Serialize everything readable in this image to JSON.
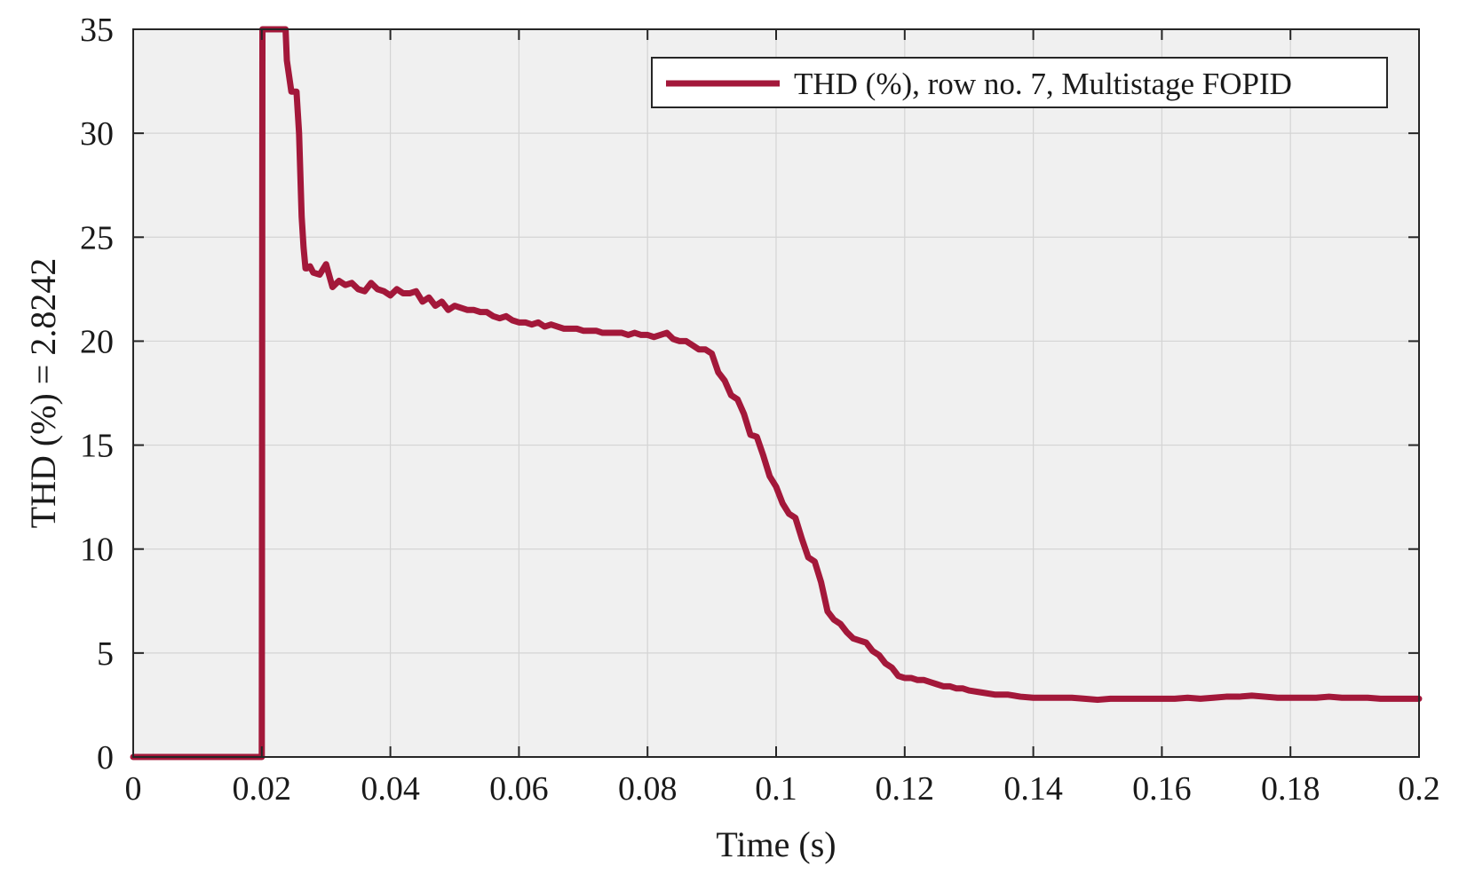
{
  "chart_data": {
    "type": "line",
    "title": "",
    "xlabel": "Time (s)",
    "ylabel": "THD (%) = 2.8242",
    "xlim": [
      0,
      0.2
    ],
    "ylim": [
      0,
      35
    ],
    "grid": true,
    "legend_position": "top-right",
    "x_ticks": [
      "0",
      "0.02",
      "0.04",
      "0.06",
      "0.08",
      "0.1",
      "0.12",
      "0.14",
      "0.16",
      "0.18",
      "0.2"
    ],
    "y_ticks": [
      "0",
      "5",
      "10",
      "15",
      "20",
      "25",
      "30",
      "35"
    ],
    "colors": {
      "line": "#a3183a",
      "plot_bg": "#f0f0f0",
      "grid": "#d4d4d4",
      "axes": "#262626"
    },
    "series": [
      {
        "name": "THD (%), row no. 7, Multistage FOPID",
        "x": [
          0,
          0.02,
          0.0201,
          0.0237,
          0.0239,
          0.0246,
          0.0254,
          0.0258,
          0.0262,
          0.0265,
          0.0268,
          0.027,
          0.0275,
          0.028,
          0.029,
          0.03,
          0.031,
          0.032,
          0.033,
          0.034,
          0.035,
          0.036,
          0.037,
          0.038,
          0.039,
          0.04,
          0.041,
          0.042,
          0.043,
          0.044,
          0.045,
          0.046,
          0.047,
          0.048,
          0.049,
          0.05,
          0.051,
          0.052,
          0.053,
          0.054,
          0.055,
          0.056,
          0.057,
          0.058,
          0.059,
          0.06,
          0.061,
          0.062,
          0.063,
          0.064,
          0.065,
          0.066,
          0.067,
          0.068,
          0.069,
          0.07,
          0.071,
          0.072,
          0.073,
          0.074,
          0.075,
          0.076,
          0.077,
          0.078,
          0.079,
          0.08,
          0.081,
          0.082,
          0.083,
          0.084,
          0.085,
          0.086,
          0.087,
          0.088,
          0.089,
          0.09,
          0.091,
          0.092,
          0.093,
          0.094,
          0.095,
          0.096,
          0.097,
          0.098,
          0.099,
          0.1,
          0.101,
          0.102,
          0.103,
          0.104,
          0.105,
          0.106,
          0.107,
          0.108,
          0.109,
          0.11,
          0.111,
          0.112,
          0.113,
          0.114,
          0.115,
          0.116,
          0.117,
          0.118,
          0.119,
          0.12,
          0.121,
          0.122,
          0.123,
          0.124,
          0.125,
          0.126,
          0.127,
          0.128,
          0.129,
          0.13,
          0.132,
          0.134,
          0.136,
          0.138,
          0.14,
          0.142,
          0.144,
          0.146,
          0.148,
          0.15,
          0.152,
          0.154,
          0.156,
          0.158,
          0.16,
          0.162,
          0.164,
          0.166,
          0.168,
          0.17,
          0.172,
          0.174,
          0.176,
          0.178,
          0.18,
          0.182,
          0.184,
          0.186,
          0.188,
          0.19,
          0.192,
          0.194,
          0.196,
          0.198,
          0.2
        ],
        "y": [
          0,
          0,
          35,
          35,
          33.5,
          32,
          32,
          30,
          26,
          24.5,
          23.5,
          23.5,
          23.6,
          23.3,
          23.2,
          23.7,
          22.6,
          22.9,
          22.7,
          22.8,
          22.5,
          22.4,
          22.8,
          22.5,
          22.4,
          22.2,
          22.5,
          22.3,
          22.3,
          22.4,
          21.9,
          22.1,
          21.7,
          21.9,
          21.5,
          21.7,
          21.6,
          21.5,
          21.5,
          21.4,
          21.4,
          21.2,
          21.1,
          21.2,
          21.0,
          20.9,
          20.9,
          20.8,
          20.9,
          20.7,
          20.8,
          20.7,
          20.6,
          20.6,
          20.6,
          20.5,
          20.5,
          20.5,
          20.4,
          20.4,
          20.4,
          20.4,
          20.3,
          20.4,
          20.3,
          20.3,
          20.2,
          20.3,
          20.4,
          20.1,
          20.0,
          20.0,
          19.8,
          19.6,
          19.6,
          19.4,
          18.5,
          18.1,
          17.4,
          17.2,
          16.5,
          15.5,
          15.4,
          14.5,
          13.5,
          13.0,
          12.2,
          11.7,
          11.5,
          10.5,
          9.6,
          9.4,
          8.4,
          7.0,
          6.6,
          6.4,
          6.0,
          5.7,
          5.6,
          5.5,
          5.1,
          4.9,
          4.5,
          4.3,
          3.9,
          3.8,
          3.8,
          3.7,
          3.7,
          3.6,
          3.5,
          3.4,
          3.4,
          3.3,
          3.3,
          3.2,
          3.1,
          3.0,
          3.0,
          2.9,
          2.85,
          2.85,
          2.85,
          2.85,
          2.8,
          2.75,
          2.8,
          2.8,
          2.8,
          2.8,
          2.8,
          2.8,
          2.85,
          2.8,
          2.85,
          2.9,
          2.9,
          2.95,
          2.9,
          2.85,
          2.85,
          2.85,
          2.85,
          2.9,
          2.85,
          2.85,
          2.85,
          2.8,
          2.8,
          2.8,
          2.8
        ]
      }
    ]
  }
}
